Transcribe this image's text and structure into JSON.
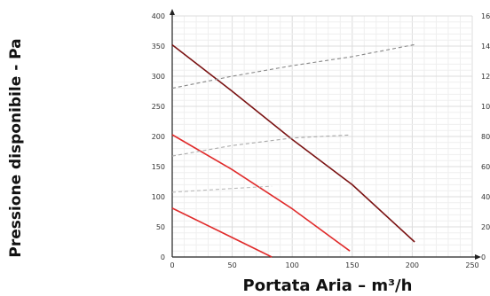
{
  "chart_data": {
    "type": "line",
    "title": "",
    "xlabel": "Portata Aria – m³/h",
    "ylabel": "Pressione disponibile - Pa",
    "xlim": [
      0,
      250
    ],
    "ylim": [
      0,
      400
    ],
    "y2lim": [
      0,
      160
    ],
    "x_ticks": [
      "0",
      "50",
      "100",
      "150",
      "200",
      "250"
    ],
    "y_ticks": [
      "0",
      "50",
      "100",
      "150",
      "200",
      "250",
      "300",
      "350",
      "400"
    ],
    "y2_ticks": [
      "0",
      "20",
      "40",
      "60",
      "80",
      "100",
      "120",
      "140",
      "160"
    ],
    "grid": true,
    "series": [
      {
        "axis": "left",
        "style": "solid",
        "color": "#7a1212",
        "x": [
          0,
          50,
          100,
          150,
          202
        ],
        "y": [
          352,
          275,
          195,
          120,
          25
        ]
      },
      {
        "axis": "left",
        "style": "solid",
        "color": "#e02b2b",
        "x": [
          0,
          50,
          100,
          148
        ],
        "y": [
          203,
          145,
          80,
          10
        ]
      },
      {
        "axis": "left",
        "style": "solid",
        "color": "#e02b2b",
        "x": [
          0,
          40,
          83
        ],
        "y": [
          81,
          42,
          0
        ]
      },
      {
        "axis": "right",
        "style": "dashed",
        "color": "#888888",
        "x": [
          0,
          50,
          100,
          150,
          202
        ],
        "y": [
          112,
          120,
          127,
          133,
          141
        ]
      },
      {
        "axis": "right",
        "style": "dashed",
        "color": "#aaaaaa",
        "x": [
          0,
          50,
          100,
          148
        ],
        "y": [
          67,
          74,
          79,
          81
        ]
      },
      {
        "axis": "right",
        "style": "dashed",
        "color": "#bbbbbb",
        "x": [
          0,
          40,
          83
        ],
        "y": [
          43,
          45,
          47
        ]
      }
    ]
  }
}
